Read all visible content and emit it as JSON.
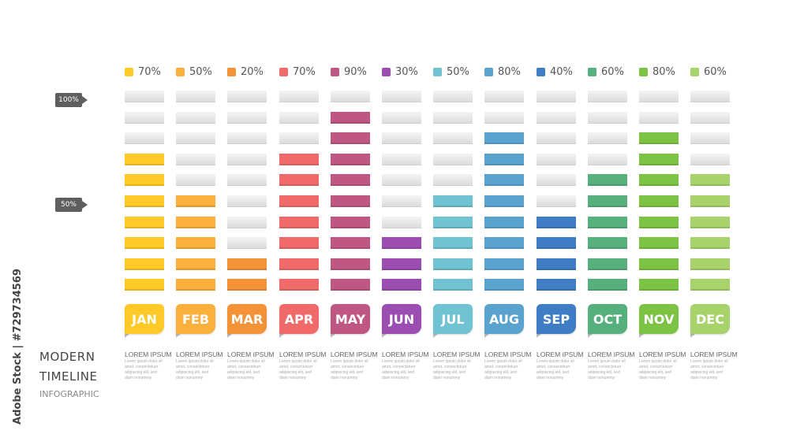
{
  "chart_data": {
    "type": "bar",
    "categories": [
      "JAN",
      "FEB",
      "MAR",
      "APR",
      "MAY",
      "JUN",
      "JUL",
      "AUG",
      "SEP",
      "OCT",
      "NOV",
      "DEC"
    ],
    "value_labels": [
      "70%",
      "50%",
      "20%",
      "70%",
      "90%",
      "30%",
      "50%",
      "80%",
      "40%",
      "60%",
      "80%",
      "60%"
    ],
    "values": [
      70,
      50,
      20,
      70,
      90,
      30,
      50,
      80,
      40,
      60,
      80,
      60
    ],
    "ylim": [
      0,
      100
    ],
    "segments": 10,
    "scale_marks": [
      "100%",
      "50%"
    ],
    "captions": {
      "heading": "LOREM IPSUM",
      "body": "Lorem ipsum dolor sit amet, consectetuer adipiscing elit, sed diam nonummy"
    },
    "colors": [
      "#FFCA28",
      "#FBB03B",
      "#F39237",
      "#F06A6A",
      "#C05683",
      "#9B4DB1",
      "#6FC3D3",
      "#5BA3CF",
      "#3F7DC4",
      "#55B07E",
      "#7CC243",
      "#A8D26A"
    ]
  },
  "title": {
    "line1": "MODERN",
    "line2": "TIMELINE",
    "line3": "INFOGRAPHIC"
  },
  "watermark": {
    "side_text": "Adobe Stock | #729734569"
  }
}
